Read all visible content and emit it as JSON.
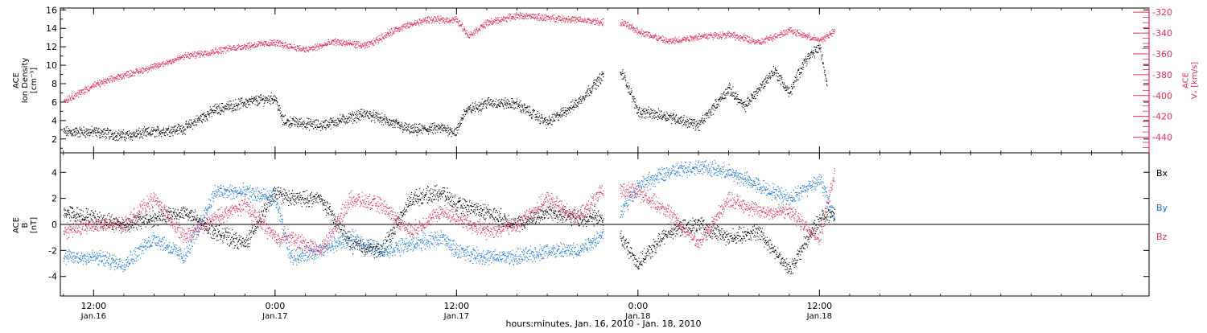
{
  "figure": {
    "footer_label": "hours:minutes, Jan. 16, 2010 - Jan. 18, 2010"
  },
  "time_axis": {
    "range_hours": [
      -14.2,
      57.8
    ],
    "ticks": [
      {
        "hour": -12,
        "label": "12:00",
        "date": "Jan.16"
      },
      {
        "hour": 0,
        "label": "0:00",
        "date": "Jan.17"
      },
      {
        "hour": 12,
        "label": "12:00",
        "date": "Jan.17"
      },
      {
        "hour": 24,
        "label": "0:00",
        "date": "Jan.18"
      },
      {
        "hour": 36,
        "label": "12:00",
        "date": "Jan.18"
      }
    ]
  },
  "colors": {
    "black": "#000000",
    "pink": "#e0305a",
    "blue": "#1878d8"
  },
  "chart_data": [
    {
      "type": "scatter",
      "panel": "top",
      "ylabel_left": "ACE\nIon Density\n[cm^-3]",
      "ylabel_left_lines": [
        "ACE",
        "Ion Density",
        "[cm⁻³]"
      ],
      "ylim_left": [
        0.5,
        16.2
      ],
      "yticks_left": [
        2,
        4,
        6,
        8,
        10,
        12,
        14,
        16
      ],
      "ylabel_right": "ACE Vx [km/s]",
      "ylabel_right_lines": [
        "ACE",
        "Vₓ [km/s]"
      ],
      "ylim_right": [
        -455,
        -316
      ],
      "yticks_right": [
        -320,
        -340,
        -360,
        -380,
        -400,
        -420,
        -440
      ],
      "series": [
        {
          "axis": "left",
          "color": "#000000",
          "x": [
            -14,
            -12,
            -10,
            -8,
            -6,
            -4,
            -2,
            0,
            0.5,
            3,
            6,
            9,
            11,
            12,
            12.5,
            14,
            16,
            18,
            20,
            22,
            23,
            24,
            26,
            28,
            30,
            31,
            33,
            34,
            35,
            36,
            36.5
          ],
          "y": [
            2.8,
            2.8,
            2.4,
            2.8,
            3.2,
            5.2,
            6.0,
            6.5,
            4.0,
            3.5,
            4.8,
            3.0,
            3.2,
            2.8,
            5.0,
            6.0,
            5.8,
            3.8,
            6.0,
            9.5,
            9.0,
            5.0,
            4.5,
            3.5,
            7.5,
            5.5,
            9.5,
            7.0,
            10.5,
            12.0,
            8.0
          ]
        },
        {
          "axis": "right",
          "color": "#e0305a",
          "x": [
            -14,
            -12,
            -10,
            -8,
            -6,
            -4,
            -2,
            0,
            2,
            4,
            6,
            8,
            10,
            12,
            12.8,
            14,
            16,
            18,
            20,
            22,
            23,
            24,
            26,
            28,
            30,
            32,
            34,
            36,
            37
          ],
          "y": [
            -405,
            -390,
            -380,
            -372,
            -362,
            -357,
            -352,
            -349,
            -356,
            -348,
            -352,
            -336,
            -327,
            -327,
            -342,
            -330,
            -323,
            -325,
            -327,
            -330,
            -330,
            -338,
            -348,
            -343,
            -341,
            -349,
            -337,
            -347,
            -338
          ]
        }
      ]
    },
    {
      "type": "scatter",
      "panel": "bottom",
      "ylabel_lines": [
        "ACE",
        "B",
        "[nT]"
      ],
      "ylim": [
        -5.5,
        5.5
      ],
      "yticks": [
        -4,
        -2,
        0,
        2,
        4
      ],
      "legend": [
        "Bx",
        "By",
        "Bz"
      ],
      "series": [
        {
          "name": "Bx",
          "color": "#000000",
          "x": [
            -14,
            -12,
            -10,
            -8,
            -6,
            -4,
            -2,
            0,
            1,
            3,
            5,
            7,
            9,
            11,
            12,
            14,
            16,
            18,
            20,
            22,
            24,
            26,
            28,
            30,
            32,
            34,
            36,
            37
          ],
          "y": [
            1.0,
            0.5,
            0.0,
            0.5,
            1.0,
            -0.5,
            -1.5,
            2.5,
            2.0,
            2.0,
            -1.5,
            -2.0,
            2.0,
            2.5,
            1.5,
            1.0,
            0.0,
            1.0,
            0.5,
            0.5,
            -3.0,
            -0.5,
            0.0,
            -1.0,
            -0.5,
            -3.5,
            0.5,
            1.0
          ]
        },
        {
          "name": "By",
          "color": "#1878d8",
          "x": [
            -14,
            -12,
            -10,
            -8,
            -6,
            -4,
            -2,
            0,
            1,
            3,
            5,
            7,
            9,
            11,
            12,
            14,
            16,
            18,
            20,
            22,
            24,
            26,
            28,
            30,
            32,
            34,
            36,
            37
          ],
          "y": [
            -2.5,
            -2.5,
            -3.0,
            -1.0,
            -2.5,
            2.5,
            2.5,
            2.0,
            -2.5,
            -2.0,
            -1.0,
            -2.0,
            -1.5,
            -1.0,
            -2.0,
            -2.5,
            -2.5,
            -2.0,
            -2.0,
            -0.5,
            3.0,
            4.0,
            4.5,
            4.0,
            3.0,
            2.0,
            3.5,
            0.5
          ]
        },
        {
          "name": "Bz",
          "color": "#e0305a",
          "x": [
            -14,
            -12,
            -10,
            -8,
            -6,
            -4,
            -2,
            0,
            1,
            3,
            5,
            7,
            9,
            11,
            12,
            14,
            16,
            18,
            20,
            22,
            24,
            26,
            28,
            30,
            32,
            34,
            36,
            37
          ],
          "y": [
            -0.5,
            0.0,
            0.0,
            2.0,
            -1.0,
            0.5,
            1.5,
            -1.0,
            -1.0,
            -2.0,
            2.0,
            1.5,
            -0.5,
            1.0,
            0.5,
            -0.5,
            0.0,
            2.0,
            0.5,
            3.0,
            2.5,
            1.0,
            -1.5,
            2.0,
            1.0,
            1.0,
            -1.0,
            4.0
          ]
        }
      ]
    }
  ]
}
